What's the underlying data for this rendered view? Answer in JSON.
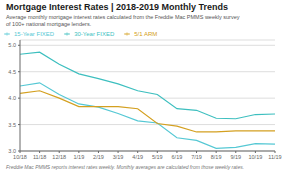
{
  "chart_data": {
    "type": "line",
    "title": "Mortgage Interest Rates | 2018-2019 Monthly Trends",
    "subtitle": "Average monthly mortgage interest rates calculated from the Freddie Mac PMMS weekly survey\nof 100+ national mortgage lenders.",
    "annotations": [
      "Freddie Mac PMMS reports interest rates weekly. Monthly averages are calculated from those weekly rates."
    ],
    "categories": [
      "10/18",
      "11/18",
      "12/18",
      "1/19",
      "2/19",
      "3/19",
      "4/19",
      "5/19",
      "6/19",
      "7/19",
      "8/19",
      "9/19",
      "10/19",
      "11/19"
    ],
    "series": [
      {
        "name": "30-Year FIXED",
        "color": "#3dbfbf",
        "values": [
          4.83,
          4.87,
          4.64,
          4.46,
          4.37,
          4.27,
          4.14,
          4.07,
          3.8,
          3.77,
          3.62,
          3.61,
          3.69,
          3.7
        ]
      },
      {
        "name": "15-Year FIXED",
        "color": "#55c8d4",
        "values": [
          4.23,
          4.29,
          4.07,
          3.89,
          3.83,
          3.71,
          3.57,
          3.53,
          3.25,
          3.2,
          3.05,
          3.07,
          3.14,
          3.13
        ]
      },
      {
        "name": "5/1 ARM",
        "color": "#d4a020",
        "values": [
          4.09,
          4.14,
          4.0,
          3.84,
          3.84,
          3.84,
          3.8,
          3.52,
          3.47,
          3.36,
          3.36,
          3.38,
          3.38,
          3.38
        ]
      }
    ],
    "ylim": [
      3.0,
      5.1
    ],
    "yticks": [
      {
        "value": 3.0,
        "label": "3.0"
      },
      {
        "value": 3.5,
        "label": "3.5"
      },
      {
        "value": 4.0,
        "label": "4.0"
      },
      {
        "value": 4.5,
        "label": "4.5"
      },
      {
        "value": 5.0,
        "label": "5.0"
      }
    ],
    "grid": true,
    "legend": "top"
  }
}
